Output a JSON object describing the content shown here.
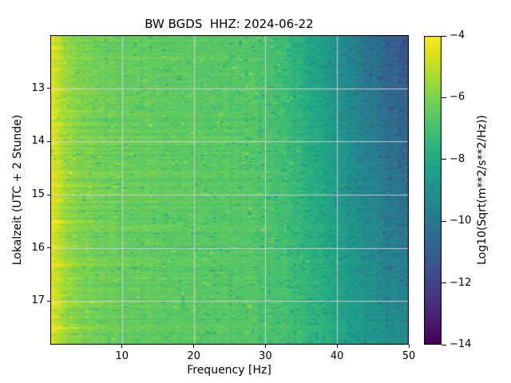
{
  "window": {
    "background": "#ffffff"
  },
  "plot": {
    "title": "BW BGDS  HHZ: 2024-06-22",
    "x_axis": {
      "label": "Frequency [Hz]",
      "ticks": [
        "10",
        "20",
        "30",
        "40",
        "50"
      ]
    },
    "y_axis": {
      "label": "Lokalzeit (UTC + 2 Stunde)",
      "ticks": [
        "13",
        "14",
        "15",
        "16",
        "17"
      ]
    },
    "colorbar": {
      "label": "Log10(Sqrt(m**2/s**2/Hz))",
      "ticks": [
        "−4",
        "−6",
        "−8",
        "−10",
        "−12",
        "−14"
      ]
    }
  },
  "chart_data": {
    "type": "heatmap",
    "title": "BW BGDS  HHZ: 2024-06-22",
    "xlabel": "Frequency [Hz]",
    "ylabel": "Lokalzeit (UTC + 2 Stunde)",
    "x_range_hz": [
      0,
      50
    ],
    "y_range_local_hours": [
      12.0,
      17.82
    ],
    "x_ticks": [
      10,
      20,
      30,
      40,
      50
    ],
    "y_ticks": [
      13,
      14,
      15,
      16,
      17
    ],
    "grid": true,
    "grid_color": "rgba(213,207,214,0.95)",
    "colorbar": {
      "label": "Log10(Sqrt(m**2/s**2/Hz))",
      "vmin": -14,
      "vmax": -4,
      "ticks": [
        -4,
        -6,
        -8,
        -10,
        -12,
        -14
      ]
    },
    "colormap": {
      "name": "viridis",
      "anchors": [
        "#440154",
        "#48186a",
        "#472d7b",
        "#424086",
        "#3b528b",
        "#33638d",
        "#2c728e",
        "#26828e",
        "#21918c",
        "#1fa088",
        "#28ae80",
        "#3fbc73",
        "#5ec962",
        "#84d44b",
        "#addc30",
        "#d8e219",
        "#fde725"
      ]
    },
    "spectral_profile": {
      "freq_hz": [
        0,
        0.5,
        1,
        2,
        3.5,
        5,
        8,
        12,
        20,
        28,
        33,
        38,
        42,
        46,
        50
      ],
      "log10_sqrt_psd": [
        -4.25,
        -4.65,
        -5.0,
        -5.5,
        -5.85,
        -6.1,
        -6.3,
        -6.4,
        -6.55,
        -6.7,
        -7.1,
        -8.0,
        -8.9,
        -9.7,
        -10.3
      ]
    },
    "high_freq_time_trend": {
      "start_hz": 30,
      "full_hz": 50,
      "amplitude": 2.2
    },
    "noise": {
      "seed": 42,
      "row_amp": 0.38,
      "cell_amp": 0.46,
      "col_amp": 0.18,
      "hf_col_amp": 0.3,
      "dark_speckle_base_p": 0.035,
      "dark_speckle_hf_p": 0.14,
      "bright_speckle_p": 0.015,
      "streak_count": 16
    }
  }
}
